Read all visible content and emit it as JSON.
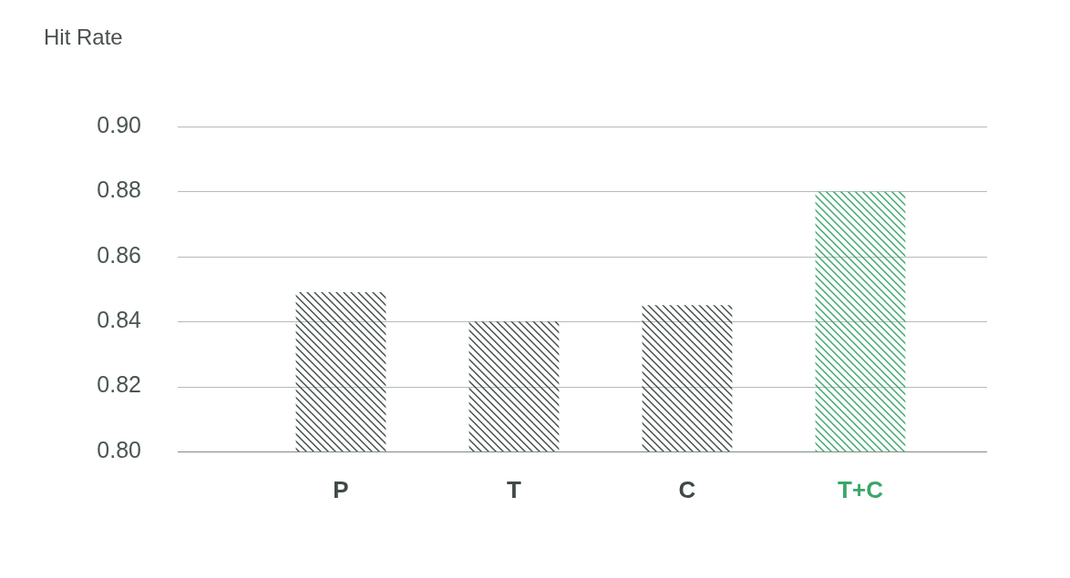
{
  "chart_data": {
    "type": "bar",
    "y_label": "Hit Rate",
    "categories": [
      "P",
      "T",
      "C",
      "T+C"
    ],
    "values": [
      0.849,
      0.84,
      0.845,
      0.88
    ],
    "colors": [
      "#3f4a46",
      "#3f4a46",
      "#3f4a46",
      "#3aa66a"
    ],
    "ylim": [
      0.8,
      0.9
    ],
    "yticks": [
      {
        "value": 0.8,
        "label": "0.80"
      },
      0.82,
      0.84,
      0.86,
      0.88,
      {
        "value": 0.9,
        "label": "0.90"
      }
    ],
    "grid": true
  }
}
